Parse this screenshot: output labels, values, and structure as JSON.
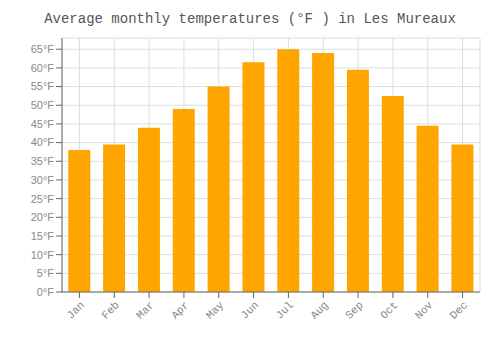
{
  "chart_data": {
    "type": "bar",
    "title": "Average monthly temperatures (°F ) in Les Mureaux",
    "categories": [
      "Jan",
      "Feb",
      "Mar",
      "Apr",
      "May",
      "Jun",
      "Jul",
      "Aug",
      "Sep",
      "Oct",
      "Nov",
      "Dec"
    ],
    "values": [
      38,
      39.5,
      44,
      49,
      55,
      61.5,
      65,
      64,
      59.5,
      52.5,
      44.5,
      39.5
    ],
    "color": "#FFA500",
    "ylim": [
      0,
      68
    ],
    "yticks": [
      {
        "value": 0,
        "label": "0°F"
      },
      {
        "value": 5,
        "label": "5°F"
      },
      {
        "value": 10,
        "label": "10°F"
      },
      {
        "value": 15,
        "label": "15°F"
      },
      {
        "value": 20,
        "label": "20°F"
      },
      {
        "value": 25,
        "label": "25°F"
      },
      {
        "value": 30,
        "label": "30°F"
      },
      {
        "value": 35,
        "label": "35°F"
      },
      {
        "value": 40,
        "label": "40°F"
      },
      {
        "value": 45,
        "label": "45°F"
      },
      {
        "value": 50,
        "label": "50°F"
      },
      {
        "value": 55,
        "label": "55°F"
      },
      {
        "value": 60,
        "label": "60°F"
      },
      {
        "value": 65,
        "label": "65°F"
      }
    ],
    "grid": true
  }
}
